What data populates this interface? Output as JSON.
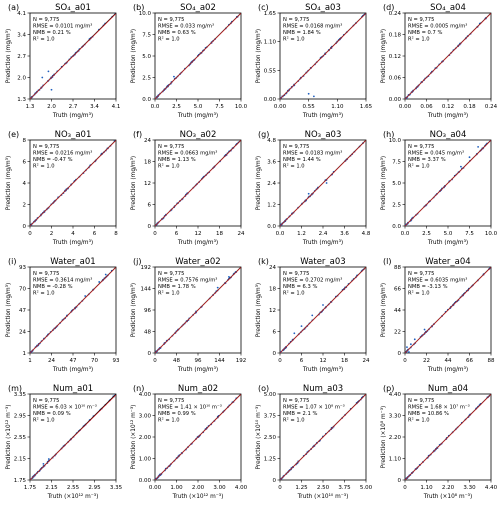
{
  "figure": {
    "ylabel": "Prediction (mg/m³)",
    "xlabel": "Truth (mg/m³)"
  },
  "colors": {
    "points": "#1f5fbf",
    "reference_line": "#000000",
    "fit_line": "#d62728"
  },
  "chart_data": [
    {
      "type": "scatter",
      "panel": "(a)",
      "title": "SO₄_a01",
      "xlabel": "Truth (mg/m³)",
      "ylabel": "Prediction (mg/m³)",
      "xlim": [
        1.3,
        4.1
      ],
      "ylim": [
        1.3,
        4.1
      ],
      "xticks": [
        "1.3",
        "2.0",
        "2.7",
        "3.4",
        "4.1"
      ],
      "yticks": [
        "1.3",
        "2.0",
        "2.7",
        "3.4",
        "4.1"
      ],
      "stats": [
        "N = 9,775",
        "RMSE = 0.0101 mg/m³",
        "NMB = 0.21 %",
        "R² = 1.0"
      ],
      "outliers": [
        [
          1.7,
          2.0
        ],
        [
          1.9,
          2.2
        ],
        [
          2.0,
          1.6
        ]
      ]
    },
    {
      "type": "scatter",
      "panel": "(b)",
      "title": "SO₄_a02",
      "xlabel": "Truth (mg/m³)",
      "ylabel": "Prediction (mg/m³)",
      "xlim": [
        0,
        10
      ],
      "ylim": [
        0,
        10
      ],
      "xticks": [
        "0.0",
        "2.5",
        "5.0",
        "7.5",
        "10.0"
      ],
      "yticks": [
        "0.0",
        "2.5",
        "5.0",
        "7.5",
        "10.0"
      ],
      "stats": [
        "N = 9,775",
        "RMSE = 0.033 mg/m³",
        "NMB = 0.63 %",
        "R² = 1.0"
      ],
      "outliers": [
        [
          2.2,
          2.6
        ]
      ]
    },
    {
      "type": "scatter",
      "panel": "(c)",
      "title": "SO₄_a03",
      "xlabel": "Truth (mg/m³)",
      "ylabel": "Prediction (mg/m³)",
      "xlim": [
        0,
        1.5
      ],
      "ylim": [
        0,
        1.5
      ],
      "xticks": [
        "0.00",
        "0.55",
        "1.10",
        "1.65"
      ],
      "yticks": [
        "0.00",
        "0.55",
        "1.10",
        "1.65"
      ],
      "tick_values": [
        0,
        0.55,
        1.1,
        1.65
      ],
      "stats": [
        "N = 9,775",
        "RMSE = 0.0168 mg/m³",
        "NMB = 1.84 %",
        "R² = 1.0"
      ],
      "outliers": [
        [
          0.55,
          0.1
        ],
        [
          0.65,
          0.05
        ]
      ]
    },
    {
      "type": "scatter",
      "panel": "(d)",
      "title": "SO₄_a04",
      "xlabel": "Truth (mg/m³)",
      "ylabel": "Prediction (mg/m³)",
      "xlim": [
        0,
        0.24
      ],
      "ylim": [
        0,
        0.24
      ],
      "xticks": [
        "0.00",
        "0.06",
        "0.12",
        "0.18",
        "0.24"
      ],
      "yticks": [
        "0.00",
        "0.06",
        "0.12",
        "0.18",
        "0.24"
      ],
      "stats": [
        "N = 9,775",
        "RMSE = 0.0005 mg/m³",
        "NMB = 0.7 %",
        "R² = 1.0"
      ],
      "outliers": []
    },
    {
      "type": "scatter",
      "panel": "(e)",
      "title": "NO₃_a01",
      "xlabel": "Truth (mg/m³)",
      "ylabel": "Prediction (mg/m³)",
      "xlim": [
        0,
        8
      ],
      "ylim": [
        0,
        8
      ],
      "xticks": [
        "0",
        "2",
        "4",
        "6",
        "8"
      ],
      "yticks": [
        "0",
        "2",
        "4",
        "6",
        "8"
      ],
      "stats": [
        "N = 9,775",
        "RMSE = 0.0216 mg/m³",
        "NMB = -0.47 %",
        "R² = 1.0"
      ],
      "outliers": []
    },
    {
      "type": "scatter",
      "panel": "(f)",
      "title": "NO₃_a02",
      "xlabel": "Truth (mg/m³)",
      "ylabel": "Prediction (mg/m³)",
      "xlim": [
        0,
        24
      ],
      "ylim": [
        0,
        24
      ],
      "xticks": [
        "0",
        "6",
        "12",
        "18",
        "24"
      ],
      "yticks": [
        "0",
        "6",
        "12",
        "18",
        "24"
      ],
      "stats": [
        "N = 9,775",
        "RMSE = 0.0663 mg/m³",
        "NMB = 1.13 %",
        "R² = 1.0"
      ],
      "outliers": []
    },
    {
      "type": "scatter",
      "panel": "(g)",
      "title": "NO₃_a03",
      "xlabel": "Truth (mg/m³)",
      "ylabel": "Prediction (mg/m³)",
      "xlim": [
        0,
        4.8
      ],
      "ylim": [
        0,
        4.8
      ],
      "xticks": [
        "0.0",
        "1.2",
        "2.4",
        "3.6",
        "4.8"
      ],
      "yticks": [
        "0.0",
        "1.2",
        "2.4",
        "3.6",
        "4.8"
      ],
      "stats": [
        "N = 9,775",
        "RMSE = 0.0183 mg/m³",
        "NMB = 1.44 %",
        "R² = 1.0"
      ],
      "outliers": [
        [
          1.6,
          1.8
        ],
        [
          2.6,
          2.4
        ]
      ]
    },
    {
      "type": "scatter",
      "panel": "(h)",
      "title": "NO₃_a04",
      "xlabel": "Truth (mg/m³)",
      "ylabel": "Prediction (mg/m³)",
      "xlim": [
        0,
        10
      ],
      "ylim": [
        0,
        10
      ],
      "xticks": [
        "0.0",
        "2.5",
        "5.0",
        "7.5",
        "10.0"
      ],
      "yticks": [
        "0.0",
        "2.5",
        "5.0",
        "7.5",
        "10.0"
      ],
      "stats": [
        "N = 9,775",
        "RMSE = 0.045 mg/m³",
        "NMB = 3.37 %",
        "R² = 1.0"
      ],
      "outliers": [
        [
          6.5,
          6.9
        ],
        [
          7.5,
          8.0
        ],
        [
          8.5,
          9.2
        ]
      ]
    },
    {
      "type": "scatter",
      "panel": "(i)",
      "title": "Water_a01",
      "xlabel": "Truth (mg/m³)",
      "ylabel": "Prediction (mg/m³)",
      "xlim": [
        1,
        93
      ],
      "ylim": [
        1,
        93
      ],
      "xticks": [
        "1",
        "24",
        "47",
        "70",
        "93"
      ],
      "yticks": [
        "1",
        "24",
        "47",
        "70",
        "93"
      ],
      "stats": [
        "N = 9,775",
        "RMSE = 0.3614 mg/m³",
        "NMB = -0.28 %",
        "R² = 1.0"
      ],
      "outliers": [
        [
          60,
          62
        ],
        [
          75,
          77
        ],
        [
          82,
          85
        ]
      ]
    },
    {
      "type": "scatter",
      "panel": "(j)",
      "title": "Water_a02",
      "xlabel": "Truth (mg/m³)",
      "ylabel": "Prediction (mg/m³)",
      "xlim": [
        0,
        192
      ],
      "ylim": [
        0,
        192
      ],
      "xticks": [
        "0",
        "48",
        "96",
        "144",
        "192"
      ],
      "yticks": [
        "0",
        "48",
        "96",
        "144",
        "192"
      ],
      "stats": [
        "N = 9,775",
        "RMSE = 0.7576 mg/m³",
        "NMB = 1.78 %",
        "R² = 1.0"
      ],
      "outliers": [
        [
          140,
          146
        ],
        [
          165,
          170
        ]
      ]
    },
    {
      "type": "scatter",
      "panel": "(k)",
      "title": "Water_a03",
      "xlabel": "Truth (mg/m³)",
      "ylabel": "Prediction (mg/m³)",
      "xlim": [
        0,
        24
      ],
      "ylim": [
        0,
        24
      ],
      "xticks": [
        "0",
        "6",
        "12",
        "18",
        "24"
      ],
      "yticks": [
        "0",
        "6",
        "12",
        "18",
        "24"
      ],
      "stats": [
        "N = 9,775",
        "RMSE = 0.2702 mg/m³",
        "NMB = 6.3 %",
        "R² = 1.0"
      ],
      "outliers": [
        [
          4,
          5.5
        ],
        [
          6,
          7.5
        ],
        [
          9,
          10.5
        ],
        [
          12,
          13.4
        ]
      ]
    },
    {
      "type": "scatter",
      "panel": "(l)",
      "title": "Water_a04",
      "xlabel": "Truth (mg/m³)",
      "ylabel": "Prediction (mg/m³)",
      "xlim": [
        0,
        88
      ],
      "ylim": [
        0,
        88
      ],
      "xticks": [
        "0",
        "22",
        "44",
        "66",
        "88"
      ],
      "yticks": [
        "0",
        "22",
        "44",
        "66",
        "88"
      ],
      "stats": [
        "N = 9,775",
        "RMSE = 0.6035 mg/m³",
        "NMB = -3.13 %",
        "R² = 1.0"
      ],
      "outliers": [
        [
          2,
          6
        ],
        [
          4,
          1
        ],
        [
          6,
          9
        ],
        [
          10,
          14
        ],
        [
          20,
          24
        ]
      ]
    },
    {
      "type": "scatter",
      "panel": "(m)",
      "title": "Num_a01",
      "xlabel": "Truth (×10¹² m⁻³)",
      "ylabel": "Prediction (×10¹² m⁻³)",
      "xlim": [
        1.75,
        3.35
      ],
      "ylim": [
        1.75,
        3.35
      ],
      "xticks": [
        "1.75",
        "2.15",
        "2.55",
        "2.95",
        "3.35"
      ],
      "yticks": [
        "1.75",
        "2.15",
        "2.55",
        "2.95",
        "3.35"
      ],
      "stats": [
        "N = 9,775",
        "RMSE = 6.03 × 10¹⁰ m⁻³",
        "NMB = 0.09 %",
        "R² = 1.0"
      ],
      "outliers": [
        [
          2.0,
          2.05
        ],
        [
          2.1,
          2.14
        ]
      ]
    },
    {
      "type": "scatter",
      "panel": "(n)",
      "title": "Num_a02",
      "xlabel": "Truth (×10¹² m⁻³)",
      "ylabel": "Prediction (×10¹² m⁻³)",
      "xlim": [
        0,
        4
      ],
      "ylim": [
        0,
        4
      ],
      "xticks": [
        "0.00",
        "1.00",
        "2.00",
        "3.00",
        "4.00"
      ],
      "yticks": [
        "0.00",
        "1.00",
        "2.00",
        "3.00",
        "4.00"
      ],
      "stats": [
        "N = 9,775",
        "RMSE = 1.41 × 10¹⁰ m⁻³",
        "NMB = 0.99 %",
        "R² = 1.0"
      ],
      "outliers": []
    },
    {
      "type": "scatter",
      "panel": "(o)",
      "title": "Num_a03",
      "xlabel": "Truth (×10¹⁰ m⁻³)",
      "ylabel": "Prediction (×10¹⁰ m⁻³)",
      "xlim": [
        0,
        5
      ],
      "ylim": [
        0,
        5
      ],
      "xticks": [
        "0",
        "1.25",
        "2.50",
        "3.75",
        "5.00"
      ],
      "yticks": [
        "0",
        "1.25",
        "2.50",
        "3.75",
        "5.00"
      ],
      "stats": [
        "N = 9,775",
        "RMSE = 1.07 × 10⁸ m⁻³",
        "NMB = 2.1 %",
        "R² = 1.0"
      ],
      "outliers": []
    },
    {
      "type": "scatter",
      "panel": "(p)",
      "title": "Num_a04",
      "xlabel": "Truth (×10⁸ m⁻³)",
      "ylabel": "Prediction (×10⁸ m⁻³)",
      "xlim": [
        0,
        4.4
      ],
      "ylim": [
        0,
        4.4
      ],
      "xticks": [
        "0",
        "1.10",
        "2.20",
        "3.30",
        "4.40"
      ],
      "yticks": [
        "0",
        "1.10",
        "2.20",
        "3.30",
        "4.40"
      ],
      "stats": [
        "N = 9,775",
        "RMSE = 1.68 × 10⁷ m⁻³",
        "NMB = 10.86 %",
        "R² = 1.0"
      ],
      "outliers": []
    }
  ]
}
